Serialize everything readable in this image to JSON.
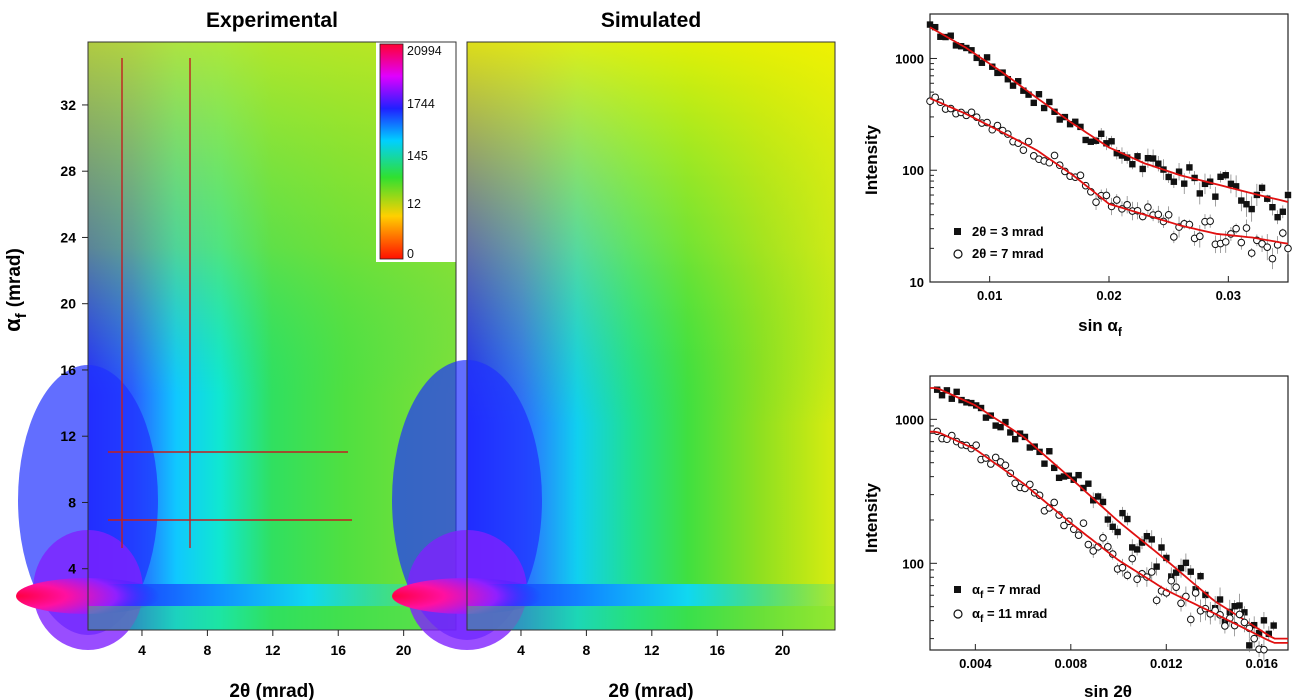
{
  "chart_data": [
    {
      "type": "heatmap",
      "title": "Experimental",
      "xlabel": "2θ  (mrad)",
      "ylabel": "αf  (mrad)",
      "xlim": [
        0.7,
        23.2
      ],
      "ylim": [
        0.3,
        35.8
      ],
      "x_ticks": [
        4,
        8,
        12,
        16,
        20
      ],
      "y_ticks": [
        4,
        8,
        12,
        16,
        20,
        24,
        28,
        32
      ],
      "colorbar": {
        "labels": [
          "20994",
          "1744",
          "145",
          "12",
          "0"
        ],
        "scale": "log",
        "colors": [
          "#ff0033",
          "#2020ff",
          "#00e0ff",
          "#30e030",
          "#ffd000",
          "#ff1000"
        ]
      },
      "cut_lines": {
        "vertical_2theta": [
          3,
          7
        ],
        "horizontal_alpha_f": [
          7,
          11
        ]
      }
    },
    {
      "type": "heatmap",
      "title": "Simulated",
      "xlabel": "2θ  (mrad)",
      "xlim": [
        0.7,
        23.2
      ],
      "ylim": [
        0.3,
        35.8
      ],
      "x_ticks": [
        4,
        8,
        12,
        16,
        20
      ]
    },
    {
      "type": "scatter",
      "xlabel": "sin αf",
      "ylabel": "Intensity",
      "x_ticks": [
        "0.01",
        "0.02",
        "0.03"
      ],
      "y_ticks": [
        "10",
        "100",
        "1000"
      ],
      "yscale": "log",
      "xlim": [
        0.005,
        0.035
      ],
      "ylim": [
        10,
        2500
      ],
      "series": [
        {
          "name": "2θ = 3 mrad",
          "marker": "filled-square",
          "x": [
            0.005,
            0.008,
            0.011,
            0.014,
            0.017,
            0.02,
            0.023,
            0.026,
            0.029,
            0.032,
            0.035
          ],
          "y": [
            1900,
            1250,
            760,
            440,
            260,
            160,
            115,
            90,
            75,
            62,
            52
          ]
        },
        {
          "name": "2θ = 7 mrad",
          "marker": "open-circle",
          "x": [
            0.005,
            0.008,
            0.011,
            0.014,
            0.017,
            0.02,
            0.023,
            0.026,
            0.029,
            0.032,
            0.035
          ],
          "y": [
            440,
            320,
            220,
            150,
            90,
            50,
            40,
            32,
            27,
            25,
            22
          ]
        }
      ],
      "legend_position": "bottom-left"
    },
    {
      "type": "scatter",
      "xlabel": "sin 2θ",
      "ylabel": "Intensity",
      "x_ticks": [
        "0.004",
        "0.008",
        "0.012",
        "0.016"
      ],
      "y_ticks": [
        "100",
        "1000"
      ],
      "yscale": "log",
      "xlim": [
        0.0021,
        0.0171
      ],
      "ylim": [
        25,
        2000
      ],
      "series": [
        {
          "name": "αf = 7 mrad",
          "marker": "filled-square",
          "x": [
            0.0024,
            0.004,
            0.006,
            0.008,
            0.01,
            0.012,
            0.014,
            0.0165
          ],
          "y": [
            1650,
            1250,
            760,
            390,
            195,
            105,
            55,
            30
          ]
        },
        {
          "name": "αf = 11 mrad",
          "marker": "open-circle",
          "x": [
            0.0024,
            0.004,
            0.006,
            0.008,
            0.01,
            0.012,
            0.014,
            0.0165
          ],
          "y": [
            820,
            620,
            360,
            190,
            105,
            65,
            45,
            28
          ]
        }
      ],
      "legend_position": "bottom-left"
    }
  ],
  "labels": {
    "exp_title": "Experimental",
    "sim_title": "Simulated",
    "x2theta": "2θ  (mrad)",
    "alpha_sym": "α",
    "alpha_sub": "f",
    "alpha_unit": "(mrad)",
    "intensity": "Intensity",
    "sin": "sin α",
    "sin_sub": "f",
    "sin2theta": "sin 2θ",
    "legend_top_1": "2θ = 3 mrad",
    "legend_top_2": "2θ = 7 mrad",
    "legend_bot_1_a": "α",
    "legend_bot_1_b": " = 7 mrad",
    "legend_bot_2_a": "α",
    "legend_bot_2_b": " = 11 mrad",
    "sub_f": "f"
  }
}
